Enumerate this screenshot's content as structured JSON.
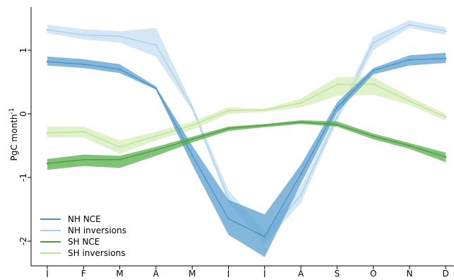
{
  "chart_data": {
    "type": "line",
    "ylabel": "PgC month",
    "ylabel_sup": "-1",
    "xlabel": "",
    "ylim": [
      -2.35,
      1.6
    ],
    "yticks": [
      1,
      0,
      -1,
      -2
    ],
    "ytick_labels": [
      "1",
      "0",
      "-1",
      "-2"
    ],
    "categories": [
      "J",
      "F",
      "M",
      "A",
      "M",
      "J",
      "J",
      "A",
      "S",
      "O",
      "N",
      "D"
    ],
    "legend_position": "bottom-left",
    "grid": false,
    "series": [
      {
        "name": "NH inversions",
        "color": "#c5dff0",
        "line_color": "#a9cfe8",
        "values": [
          1.32,
          1.24,
          1.22,
          1.08,
          0.1,
          -1.33,
          -1.95,
          -1.28,
          -0.05,
          1.12,
          1.4,
          1.3
        ],
        "lower": [
          1.27,
          1.17,
          1.12,
          0.9,
          0.05,
          -1.4,
          -2.05,
          -1.4,
          -0.12,
          1.0,
          1.35,
          1.24
        ],
        "upper": [
          1.4,
          1.33,
          1.3,
          1.35,
          0.15,
          -1.2,
          -1.85,
          -1.15,
          0.02,
          1.22,
          1.47,
          1.36
        ]
      },
      {
        "name": "SH inversions",
        "color": "#d6edb8",
        "line_color": "#bde09a",
        "values": [
          -0.3,
          -0.28,
          -0.52,
          -0.35,
          -0.18,
          0.05,
          0.06,
          0.17,
          0.46,
          0.47,
          0.2,
          -0.05
        ],
        "lower": [
          -0.37,
          -0.37,
          -0.63,
          -0.42,
          -0.25,
          0.0,
          0.03,
          0.1,
          0.28,
          0.3,
          0.14,
          -0.11
        ],
        "upper": [
          -0.2,
          -0.2,
          -0.42,
          -0.28,
          -0.12,
          0.1,
          0.08,
          0.24,
          0.58,
          0.58,
          0.27,
          0.0
        ]
      },
      {
        "name": "NH NCE",
        "color": "#5b9fd0",
        "line_color": "#4c8fc4",
        "values": [
          0.82,
          0.78,
          0.7,
          0.4,
          -0.65,
          -1.65,
          -1.93,
          -0.95,
          0.1,
          0.68,
          0.85,
          0.87
        ],
        "lower": [
          0.76,
          0.72,
          0.64,
          0.38,
          -0.8,
          -1.9,
          -2.25,
          -1.1,
          0.02,
          0.62,
          0.76,
          0.8
        ],
        "upper": [
          0.9,
          0.86,
          0.78,
          0.43,
          -0.5,
          -1.35,
          -1.58,
          -0.8,
          0.18,
          0.72,
          0.92,
          0.96
        ]
      },
      {
        "name": "SH NCE",
        "color": "#56ad4a",
        "line_color": "#4c9b40",
        "values": [
          -0.78,
          -0.72,
          -0.72,
          -0.57,
          -0.4,
          -0.23,
          -0.18,
          -0.13,
          -0.17,
          -0.35,
          -0.5,
          -0.68
        ],
        "lower": [
          -0.88,
          -0.82,
          -0.85,
          -0.66,
          -0.45,
          -0.27,
          -0.21,
          -0.16,
          -0.2,
          -0.4,
          -0.55,
          -0.76
        ],
        "upper": [
          -0.71,
          -0.64,
          -0.66,
          -0.52,
          -0.36,
          -0.2,
          -0.16,
          -0.1,
          -0.12,
          -0.31,
          -0.46,
          -0.61
        ]
      }
    ],
    "legend_order": [
      "NH NCE",
      "NH inversions",
      "SH NCE",
      "SH inversions"
    ]
  }
}
